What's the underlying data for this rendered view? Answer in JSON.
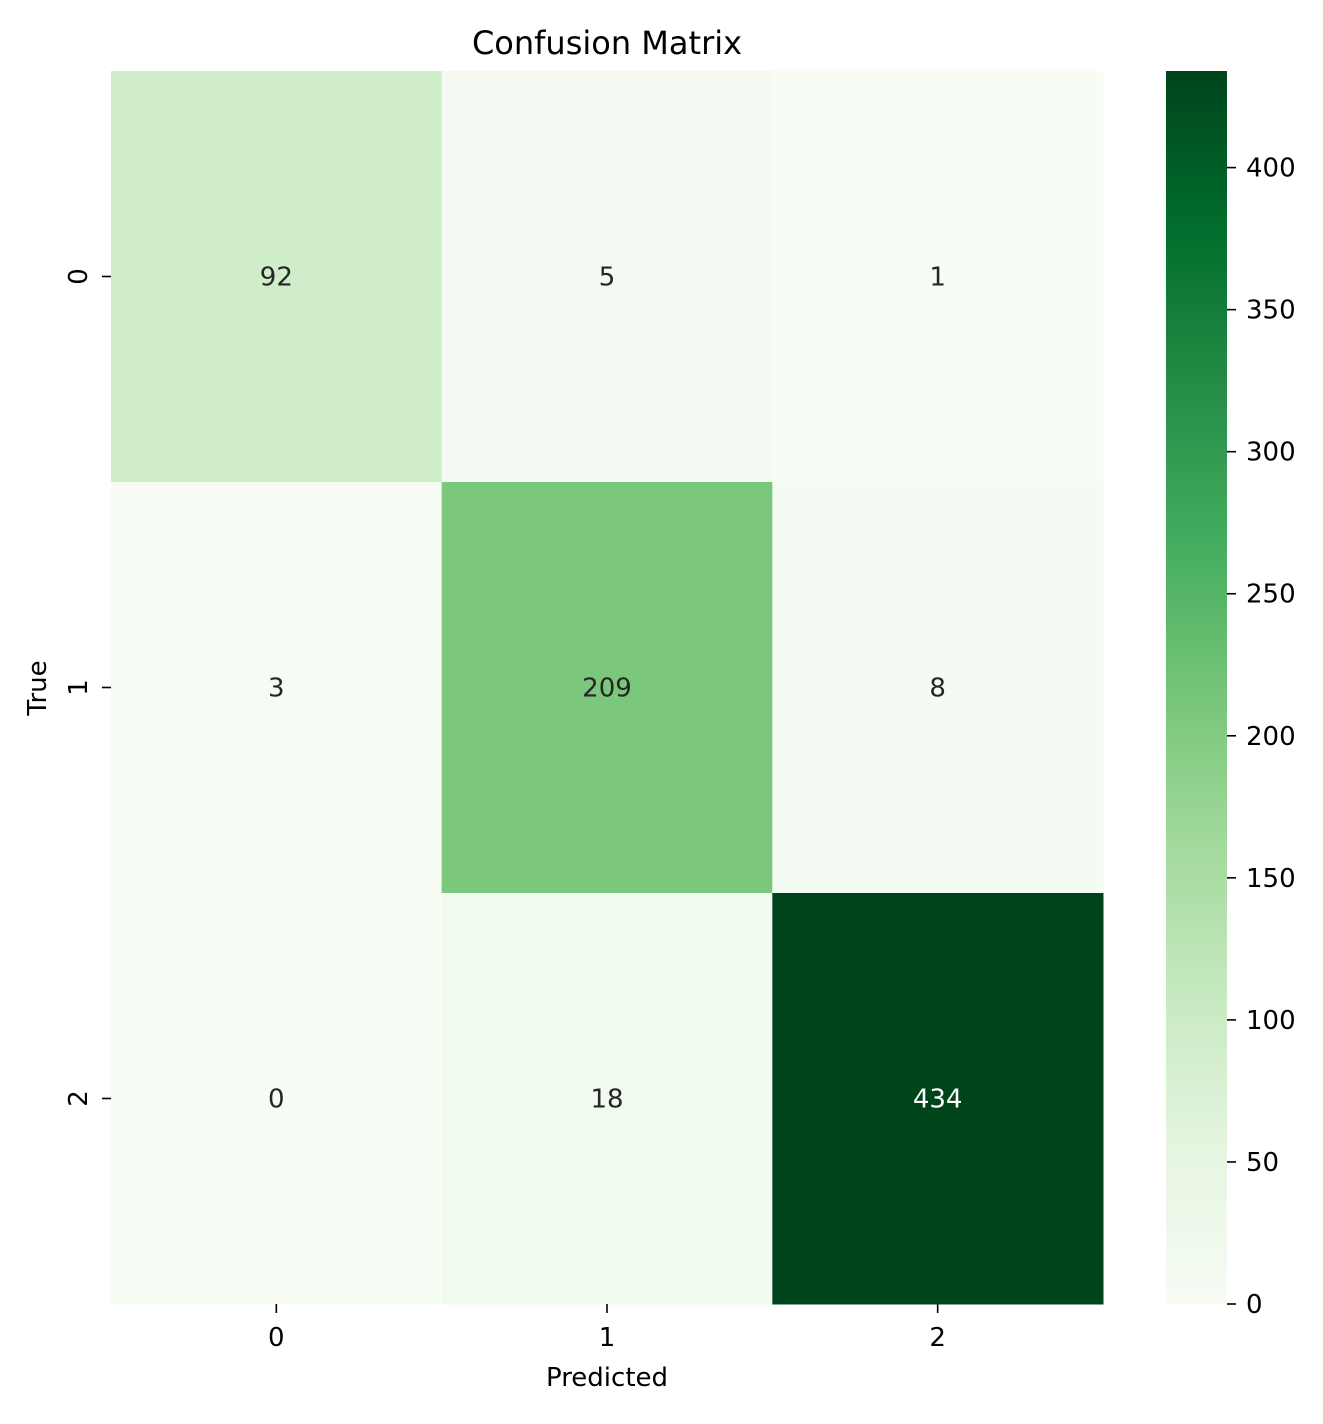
{
  "chart_data": {
    "type": "heatmap",
    "title": "Confusion Matrix",
    "xlabel": "Predicted",
    "ylabel": "True",
    "x_categories": [
      "0",
      "1",
      "2"
    ],
    "y_categories": [
      "0",
      "1",
      "2"
    ],
    "values": [
      [
        92,
        5,
        1
      ],
      [
        3,
        209,
        8
      ],
      [
        0,
        18,
        434
      ]
    ],
    "colormap": "Greens",
    "colorbar": {
      "range": [
        0,
        434
      ],
      "ticks": [
        0,
        50,
        100,
        150,
        200,
        250,
        300,
        350,
        400
      ]
    },
    "colors": {
      "low": "#f7fcf5",
      "high": "#00441b",
      "text_dark": "#262626",
      "text_light": "#ffffff"
    }
  }
}
